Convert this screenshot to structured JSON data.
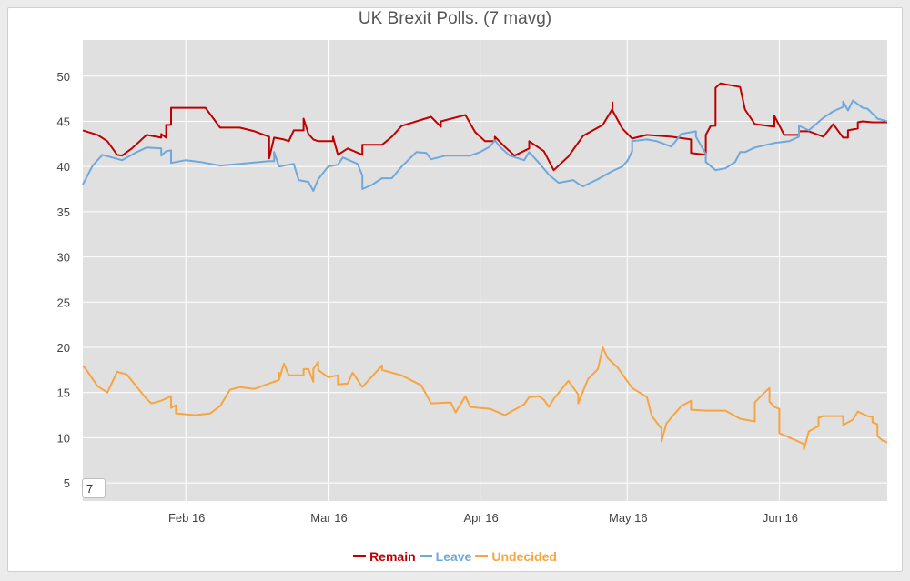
{
  "chart_data": {
    "type": "line",
    "title": "UK Brexit Polls. (7 mavg)",
    "xlabel": "",
    "ylabel": "",
    "ylim": [
      3,
      54
    ],
    "yticks": [
      5,
      10,
      15,
      20,
      25,
      30,
      35,
      40,
      45,
      50
    ],
    "xlim": [
      "2016-01-11",
      "2016-06-23"
    ],
    "xticks": [
      {
        "label": "Feb 16",
        "date": "2016-02-01"
      },
      {
        "label": "Mar 16",
        "date": "2016-03-01"
      },
      {
        "label": "Apr 16",
        "date": "2016-04-01"
      },
      {
        "label": "May 16",
        "date": "2016-05-01"
      },
      {
        "label": "Jun 16",
        "date": "2016-06-01"
      }
    ],
    "grid": true,
    "legend_position": "bottom-center",
    "background": "#e0e0e0",
    "series": [
      {
        "name": "Remain",
        "color": "#c00000",
        "points": [
          [
            "2016-01-11",
            44
          ],
          [
            "2016-01-14",
            43.5
          ],
          [
            "2016-01-16",
            42.8
          ],
          [
            "2016-01-18",
            41.3
          ],
          [
            "2016-01-19",
            41.2
          ],
          [
            "2016-01-21",
            42
          ],
          [
            "2016-01-24",
            43.5
          ],
          [
            "2016-01-27",
            43.2
          ],
          [
            "2016-01-27",
            43.6
          ],
          [
            "2016-01-28",
            43.2
          ],
          [
            "2016-01-28",
            44.6
          ],
          [
            "2016-01-29",
            44.6
          ],
          [
            "2016-01-29",
            46.5
          ],
          [
            "2016-02-05",
            46.5
          ],
          [
            "2016-02-08",
            44.3
          ],
          [
            "2016-02-12",
            44.3
          ],
          [
            "2016-02-15",
            43.9
          ],
          [
            "2016-02-18",
            43.3
          ],
          [
            "2016-02-18",
            40.9
          ],
          [
            "2016-02-19",
            43.2
          ],
          [
            "2016-02-21",
            43
          ],
          [
            "2016-02-22",
            42.8
          ],
          [
            "2016-02-23",
            44
          ],
          [
            "2016-02-25",
            44
          ],
          [
            "2016-02-25",
            45.3
          ],
          [
            "2016-02-26",
            43.6
          ],
          [
            "2016-02-27",
            43
          ],
          [
            "2016-02-28",
            42.8
          ],
          [
            "2016-03-02",
            42.8
          ],
          [
            "2016-03-02",
            43.3
          ],
          [
            "2016-03-03",
            41.3
          ],
          [
            "2016-03-05",
            42
          ],
          [
            "2016-03-08",
            41.3
          ],
          [
            "2016-03-08",
            42.4
          ],
          [
            "2016-03-12",
            42.4
          ],
          [
            "2016-03-14",
            43.3
          ],
          [
            "2016-03-16",
            44.5
          ],
          [
            "2016-03-22",
            45.5
          ],
          [
            "2016-03-24",
            44.4
          ],
          [
            "2016-03-24",
            45
          ],
          [
            "2016-03-29",
            45.7
          ],
          [
            "2016-03-31",
            43.8
          ],
          [
            "2016-04-02",
            42.8
          ],
          [
            "2016-04-04",
            42.8
          ],
          [
            "2016-04-04",
            43.3
          ],
          [
            "2016-04-06",
            42.2
          ],
          [
            "2016-04-08",
            41.2
          ],
          [
            "2016-04-11",
            42
          ],
          [
            "2016-04-11",
            42.8
          ],
          [
            "2016-04-14",
            41.7
          ],
          [
            "2016-04-16",
            39.6
          ],
          [
            "2016-04-19",
            41.1
          ],
          [
            "2016-04-22",
            43.4
          ],
          [
            "2016-04-26",
            44.6
          ],
          [
            "2016-04-28",
            46.4
          ],
          [
            "2016-04-28",
            47.1
          ],
          [
            "2016-04-28",
            46.2
          ],
          [
            "2016-04-30",
            44.2
          ],
          [
            "2016-05-02",
            43.1
          ],
          [
            "2016-05-05",
            43.5
          ],
          [
            "2016-05-10",
            43.3
          ],
          [
            "2016-05-14",
            43
          ],
          [
            "2016-05-14",
            41.5
          ],
          [
            "2016-05-17",
            41.3
          ],
          [
            "2016-05-17",
            43.5
          ],
          [
            "2016-05-18",
            44.5
          ],
          [
            "2016-05-19",
            44.5
          ],
          [
            "2016-05-19",
            48.7
          ],
          [
            "2016-05-20",
            49.2
          ],
          [
            "2016-05-24",
            48.8
          ],
          [
            "2016-05-25",
            46.3
          ],
          [
            "2016-05-27",
            44.7
          ],
          [
            "2016-05-31",
            44.4
          ],
          [
            "2016-05-31",
            45.6
          ],
          [
            "2016-06-02",
            43.5
          ],
          [
            "2016-06-05",
            43.5
          ],
          [
            "2016-06-05",
            43.9
          ],
          [
            "2016-06-07",
            43.9
          ],
          [
            "2016-06-10",
            43.3
          ],
          [
            "2016-06-12",
            44.7
          ],
          [
            "2016-06-14",
            43.2
          ],
          [
            "2016-06-15",
            43.2
          ],
          [
            "2016-06-15",
            44
          ],
          [
            "2016-06-17",
            44.2
          ],
          [
            "2016-06-17",
            44.9
          ],
          [
            "2016-06-18",
            45
          ],
          [
            "2016-06-20",
            44.9
          ],
          [
            "2016-06-23",
            44.9
          ]
        ]
      },
      {
        "name": "Leave",
        "color": "#6fa8dc",
        "points": [
          [
            "2016-01-11",
            38
          ],
          [
            "2016-01-13",
            40.1
          ],
          [
            "2016-01-15",
            41.3
          ],
          [
            "2016-01-19",
            40.7
          ],
          [
            "2016-01-22",
            41.6
          ],
          [
            "2016-01-24",
            42.1
          ],
          [
            "2016-01-27",
            42
          ],
          [
            "2016-01-27",
            41.2
          ],
          [
            "2016-01-28",
            41.7
          ],
          [
            "2016-01-29",
            41.8
          ],
          [
            "2016-01-29",
            40.4
          ],
          [
            "2016-02-01",
            40.7
          ],
          [
            "2016-02-04",
            40.5
          ],
          [
            "2016-02-08",
            40.1
          ],
          [
            "2016-02-18",
            40.6
          ],
          [
            "2016-02-19",
            40.6
          ],
          [
            "2016-02-19",
            41.6
          ],
          [
            "2016-02-20",
            40
          ],
          [
            "2016-02-23",
            40.3
          ],
          [
            "2016-02-24",
            38.5
          ],
          [
            "2016-02-26",
            38.3
          ],
          [
            "2016-02-27",
            37.3
          ],
          [
            "2016-02-28",
            38.6
          ],
          [
            "2016-03-01",
            40
          ],
          [
            "2016-03-03",
            40.2
          ],
          [
            "2016-03-04",
            41
          ],
          [
            "2016-03-07",
            40.3
          ],
          [
            "2016-03-08",
            39
          ],
          [
            "2016-03-08",
            37.5
          ],
          [
            "2016-03-10",
            38
          ],
          [
            "2016-03-12",
            38.7
          ],
          [
            "2016-03-14",
            38.7
          ],
          [
            "2016-03-16",
            40
          ],
          [
            "2016-03-19",
            41.6
          ],
          [
            "2016-03-21",
            41.5
          ],
          [
            "2016-03-22",
            40.8
          ],
          [
            "2016-03-25",
            41.2
          ],
          [
            "2016-03-30",
            41.2
          ],
          [
            "2016-04-01",
            41.6
          ],
          [
            "2016-04-03",
            42.2
          ],
          [
            "2016-04-04",
            42.9
          ],
          [
            "2016-04-05",
            42.2
          ],
          [
            "2016-04-07",
            41.2
          ],
          [
            "2016-04-10",
            40.7
          ],
          [
            "2016-04-11",
            41.6
          ],
          [
            "2016-04-13",
            40.4
          ],
          [
            "2016-04-15",
            39.1
          ],
          [
            "2016-04-17",
            38.2
          ],
          [
            "2016-04-20",
            38.5
          ],
          [
            "2016-04-21",
            38.1
          ],
          [
            "2016-04-22",
            37.8
          ],
          [
            "2016-04-25",
            38.6
          ],
          [
            "2016-04-28",
            39.5
          ],
          [
            "2016-04-30",
            40
          ],
          [
            "2016-05-01",
            40.6
          ],
          [
            "2016-05-02",
            41.7
          ],
          [
            "2016-05-02",
            42.8
          ],
          [
            "2016-05-05",
            43
          ],
          [
            "2016-05-07",
            42.8
          ],
          [
            "2016-05-10",
            42.2
          ],
          [
            "2016-05-12",
            43.6
          ],
          [
            "2016-05-15",
            43.9
          ],
          [
            "2016-05-15",
            43.3
          ],
          [
            "2016-05-17",
            41.4
          ],
          [
            "2016-05-17",
            40.5
          ],
          [
            "2016-05-19",
            39.6
          ],
          [
            "2016-05-21",
            39.8
          ],
          [
            "2016-05-23",
            40.5
          ],
          [
            "2016-05-24",
            41.6
          ],
          [
            "2016-05-25",
            41.6
          ],
          [
            "2016-05-27",
            42.1
          ],
          [
            "2016-05-31",
            42.6
          ],
          [
            "2016-06-03",
            42.8
          ],
          [
            "2016-06-05",
            43.3
          ],
          [
            "2016-06-05",
            44.5
          ],
          [
            "2016-06-07",
            44
          ],
          [
            "2016-06-10",
            45.4
          ],
          [
            "2016-06-12",
            46.1
          ],
          [
            "2016-06-14",
            46.6
          ],
          [
            "2016-06-14",
            47.2
          ],
          [
            "2016-06-15",
            46.2
          ],
          [
            "2016-06-16",
            47.3
          ],
          [
            "2016-06-18",
            46.5
          ],
          [
            "2016-06-19",
            46.4
          ],
          [
            "2016-06-21",
            45.3
          ],
          [
            "2016-06-23",
            45
          ]
        ]
      },
      {
        "name": "Undecided",
        "color": "#f6a540",
        "points": [
          [
            "2016-01-11",
            18
          ],
          [
            "2016-01-12",
            17.3
          ],
          [
            "2016-01-14",
            15.7
          ],
          [
            "2016-01-16",
            15
          ],
          [
            "2016-01-18",
            17.3
          ],
          [
            "2016-01-20",
            17
          ],
          [
            "2016-01-21",
            16.3
          ],
          [
            "2016-01-24",
            14.3
          ],
          [
            "2016-01-25",
            13.8
          ],
          [
            "2016-01-27",
            14.1
          ],
          [
            "2016-01-29",
            14.6
          ],
          [
            "2016-01-29",
            13.3
          ],
          [
            "2016-01-30",
            13.6
          ],
          [
            "2016-01-30",
            12.7
          ],
          [
            "2016-02-03",
            12.5
          ],
          [
            "2016-02-06",
            12.7
          ],
          [
            "2016-02-08",
            13.5
          ],
          [
            "2016-02-10",
            15.3
          ],
          [
            "2016-02-12",
            15.6
          ],
          [
            "2016-02-15",
            15.4
          ],
          [
            "2016-02-20",
            16.4
          ],
          [
            "2016-02-20",
            17.2
          ],
          [
            "2016-02-20",
            16.4
          ],
          [
            "2016-02-21",
            18.2
          ],
          [
            "2016-02-22",
            16.9
          ],
          [
            "2016-02-25",
            16.9
          ],
          [
            "2016-02-25",
            17.6
          ],
          [
            "2016-02-26",
            17.6
          ],
          [
            "2016-02-27",
            16.2
          ],
          [
            "2016-02-27",
            17.6
          ],
          [
            "2016-02-28",
            18.4
          ],
          [
            "2016-02-28",
            17.5
          ],
          [
            "2016-03-01",
            16.7
          ],
          [
            "2016-03-03",
            16.9
          ],
          [
            "2016-03-03",
            15.9
          ],
          [
            "2016-03-05",
            16
          ],
          [
            "2016-03-06",
            17.2
          ],
          [
            "2016-03-08",
            15.6
          ],
          [
            "2016-03-10",
            16.8
          ],
          [
            "2016-03-12",
            18
          ],
          [
            "2016-03-12",
            17.5
          ],
          [
            "2016-03-16",
            16.9
          ],
          [
            "2016-03-20",
            15.8
          ],
          [
            "2016-03-22",
            13.8
          ],
          [
            "2016-03-26",
            13.9
          ],
          [
            "2016-03-27",
            12.8
          ],
          [
            "2016-03-29",
            14.6
          ],
          [
            "2016-03-30",
            13.4
          ],
          [
            "2016-04-03",
            13.2
          ],
          [
            "2016-04-06",
            12.5
          ],
          [
            "2016-04-10",
            13.7
          ],
          [
            "2016-04-11",
            14.5
          ],
          [
            "2016-04-13",
            14.6
          ],
          [
            "2016-04-14",
            14.2
          ],
          [
            "2016-04-15",
            13.4
          ],
          [
            "2016-04-16",
            14.3
          ],
          [
            "2016-04-19",
            16.3
          ],
          [
            "2016-04-21",
            14.8
          ],
          [
            "2016-04-21",
            13.8
          ],
          [
            "2016-04-23",
            16.5
          ],
          [
            "2016-04-25",
            17.6
          ],
          [
            "2016-04-26",
            20
          ],
          [
            "2016-04-27",
            18.8
          ],
          [
            "2016-04-29",
            17.8
          ],
          [
            "2016-05-02",
            15.5
          ],
          [
            "2016-05-05",
            14.5
          ],
          [
            "2016-05-06",
            12.4
          ],
          [
            "2016-05-08",
            11
          ],
          [
            "2016-05-08",
            9.6
          ],
          [
            "2016-05-09",
            11.6
          ],
          [
            "2016-05-12",
            13.5
          ],
          [
            "2016-05-14",
            14.1
          ],
          [
            "2016-05-14",
            13.1
          ],
          [
            "2016-05-17",
            13
          ],
          [
            "2016-05-21",
            13
          ],
          [
            "2016-05-24",
            12.1
          ],
          [
            "2016-05-27",
            11.8
          ],
          [
            "2016-05-27",
            13.9
          ],
          [
            "2016-05-29",
            15
          ],
          [
            "2016-05-30",
            15.5
          ],
          [
            "2016-05-30",
            14
          ],
          [
            "2016-05-31",
            13.4
          ],
          [
            "2016-06-01",
            13.2
          ],
          [
            "2016-06-01",
            10.5
          ],
          [
            "2016-06-04",
            9.8
          ],
          [
            "2016-06-06",
            9.3
          ],
          [
            "2016-06-06",
            8.7
          ],
          [
            "2016-06-07",
            10.7
          ],
          [
            "2016-06-09",
            11.3
          ],
          [
            "2016-06-09",
            12.2
          ],
          [
            "2016-06-10",
            12.4
          ],
          [
            "2016-06-14",
            12.4
          ],
          [
            "2016-06-14",
            11.4
          ],
          [
            "2016-06-16",
            12
          ],
          [
            "2016-06-17",
            12.9
          ],
          [
            "2016-06-19",
            12.4
          ],
          [
            "2016-06-20",
            12.3
          ],
          [
            "2016-06-20",
            11.7
          ],
          [
            "2016-06-21",
            11.5
          ],
          [
            "2016-06-21",
            10.2
          ],
          [
            "2016-06-22",
            9.7
          ],
          [
            "2016-06-23",
            9.5
          ]
        ]
      }
    ]
  },
  "avg_input": {
    "value": "7"
  }
}
